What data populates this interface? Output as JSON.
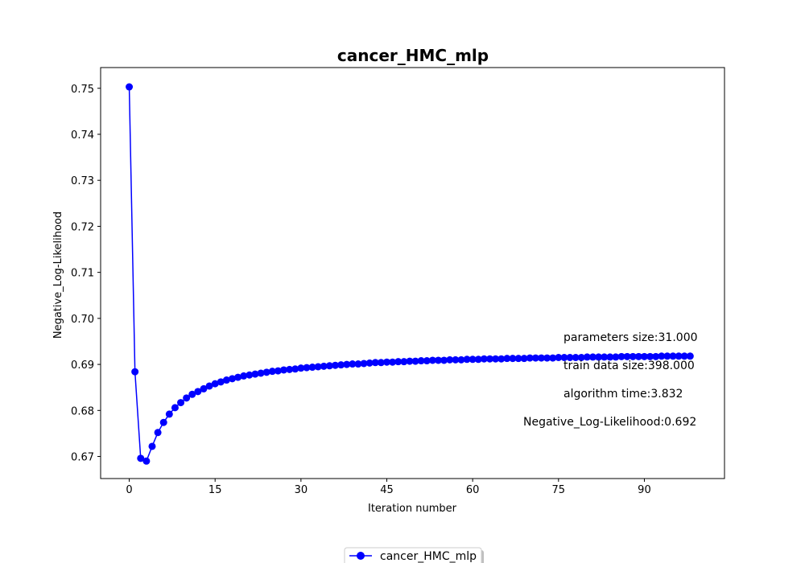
{
  "chart_data": {
    "type": "line",
    "title": "cancer_HMC_mlp",
    "xlabel": "Iteration number",
    "ylabel": "Negative_Log-Likelihood",
    "xlim": [
      -5.0,
      104.0
    ],
    "ylim": [
      0.6652,
      0.7545
    ],
    "xticks": [
      0,
      15,
      30,
      45,
      60,
      75,
      90
    ],
    "yticks": [
      0.67,
      0.68,
      0.69,
      0.7,
      0.71,
      0.72,
      0.73,
      0.74,
      0.75
    ],
    "ytick_labels": [
      "0.67",
      "0.68",
      "0.69",
      "0.70",
      "0.71",
      "0.72",
      "0.73",
      "0.74",
      "0.75"
    ],
    "grid": false,
    "legend_position": "bottom-center",
    "series": [
      {
        "name": "cancer_HMC_mlp",
        "color": "#0000ff",
        "marker": "circle",
        "x": [
          0,
          1,
          2,
          3,
          4,
          5,
          6,
          7,
          8,
          9,
          10,
          11,
          12,
          13,
          14,
          15,
          16,
          17,
          18,
          19,
          20,
          21,
          22,
          23,
          24,
          25,
          26,
          27,
          28,
          29,
          30,
          31,
          32,
          33,
          34,
          35,
          36,
          37,
          38,
          39,
          40,
          41,
          42,
          43,
          44,
          45,
          46,
          47,
          48,
          49,
          50,
          51,
          52,
          53,
          54,
          55,
          56,
          57,
          58,
          59,
          60,
          61,
          62,
          63,
          64,
          65,
          66,
          67,
          68,
          69,
          70,
          71,
          72,
          73,
          74,
          75,
          76,
          77,
          78,
          79,
          80,
          81,
          82,
          83,
          84,
          85,
          86,
          87,
          88,
          89,
          90,
          91,
          92,
          93,
          94,
          95,
          96,
          97,
          98
        ],
        "y": [
          0.7503,
          0.6884,
          0.6696,
          0.669,
          0.6722,
          0.6752,
          0.6774,
          0.6792,
          0.6806,
          0.6817,
          0.6827,
          0.6835,
          0.6841,
          0.6847,
          0.6853,
          0.6858,
          0.6862,
          0.6866,
          0.6869,
          0.6872,
          0.6875,
          0.6877,
          0.6879,
          0.6881,
          0.6883,
          0.6885,
          0.6886,
          0.6888,
          0.6889,
          0.689,
          0.6892,
          0.6893,
          0.6894,
          0.6895,
          0.6896,
          0.6897,
          0.6898,
          0.6899,
          0.69,
          0.6901,
          0.6901,
          0.6902,
          0.6903,
          0.6904,
          0.6904,
          0.6905,
          0.6905,
          0.6906,
          0.6906,
          0.6907,
          0.6907,
          0.6908,
          0.6908,
          0.6909,
          0.6909,
          0.6909,
          0.691,
          0.691,
          0.691,
          0.6911,
          0.6911,
          0.6911,
          0.6912,
          0.6912,
          0.6912,
          0.6912,
          0.6913,
          0.6913,
          0.6913,
          0.6913,
          0.6914,
          0.6914,
          0.6914,
          0.6914,
          0.6914,
          0.6915,
          0.6915,
          0.6915,
          0.6915,
          0.6915,
          0.6916,
          0.6916,
          0.6916,
          0.6916,
          0.6916,
          0.6916,
          0.6917,
          0.6917,
          0.6917,
          0.6917,
          0.6917,
          0.6917,
          0.6917,
          0.6918,
          0.6918,
          0.6918,
          0.6918,
          0.6918,
          0.6918
        ]
      }
    ],
    "annotations": [
      "parameters size:31.000",
      "train data size:398.000",
      "algorithm time:3.832",
      "Negative_Log-Likelihood:0.692"
    ]
  }
}
